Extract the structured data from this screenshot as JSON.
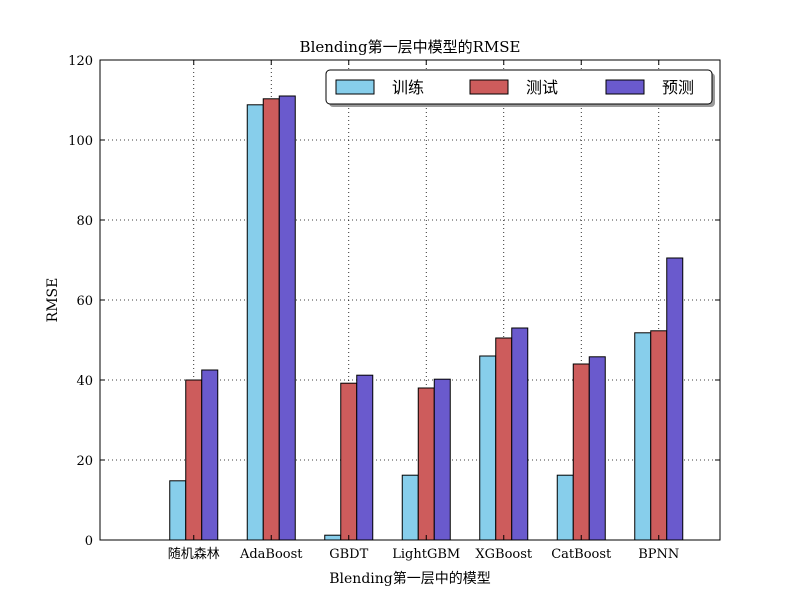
{
  "chart_data": {
    "type": "bar",
    "title": "Blending第一层中模型的RMSE",
    "xlabel": "Blending第一层中的模型",
    "ylabel": "RMSE",
    "ylim": [
      0,
      120
    ],
    "yticks": [
      0,
      20,
      40,
      60,
      80,
      100,
      120
    ],
    "grid": true,
    "legend_position": "top-right",
    "categories": [
      "随机森林",
      "AdaBoost",
      "GBDT",
      "LightGBM",
      "XGBoost",
      "CatBoost",
      "BPNN"
    ],
    "series": [
      {
        "name": "训练",
        "color": "#87ceeb",
        "values": [
          14.8,
          108.8,
          1.2,
          16.2,
          46.0,
          16.2,
          51.8
        ]
      },
      {
        "name": "测试",
        "color": "#cd5c5c",
        "values": [
          40.0,
          110.3,
          39.2,
          38.0,
          50.5,
          44.0,
          52.3
        ]
      },
      {
        "name": "预测",
        "color": "#6a5acd",
        "values": [
          42.5,
          111.0,
          41.2,
          40.2,
          53.0,
          45.8,
          70.5
        ]
      }
    ]
  }
}
